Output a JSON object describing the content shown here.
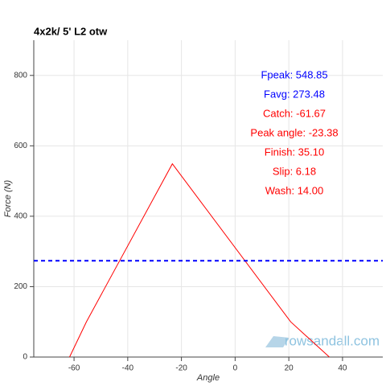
{
  "chart_data": {
    "type": "line",
    "title": "4x2k/ 5' L2 otw",
    "x_label": "Angle",
    "y_label": "Force (N)",
    "x": [
      -61.67,
      -55.4,
      -23.38,
      20.7,
      35.1
    ],
    "series": [
      {
        "color": "#ff0000",
        "values": [
          0,
          100,
          548.85,
          100,
          0
        ]
      }
    ],
    "hline": {
      "value": 273.48,
      "color": "#0000ff"
    },
    "xlim": [
      -75,
      55
    ],
    "ylim": [
      0,
      900
    ],
    "xticks": [
      -60,
      -40,
      -20,
      0,
      20,
      40
    ],
    "yticks": [
      0,
      200,
      400,
      600,
      800
    ],
    "grid": true,
    "annotations": [
      {
        "text": "Fpeak: 548.85",
        "color": "#0000ff"
      },
      {
        "text": "Favg: 273.48",
        "color": "#0000ff"
      },
      {
        "text": "Catch: -61.67",
        "color": "#ff0000"
      },
      {
        "text": "Peak angle: -23.38",
        "color": "#ff0000"
      },
      {
        "text": "Finish: 35.10",
        "color": "#ff0000"
      },
      {
        "text": "Slip: 6.18",
        "color": "#ff0000"
      },
      {
        "text": "Wash: 14.00",
        "color": "#ff0000"
      }
    ],
    "watermark": "rowsandall.com"
  }
}
